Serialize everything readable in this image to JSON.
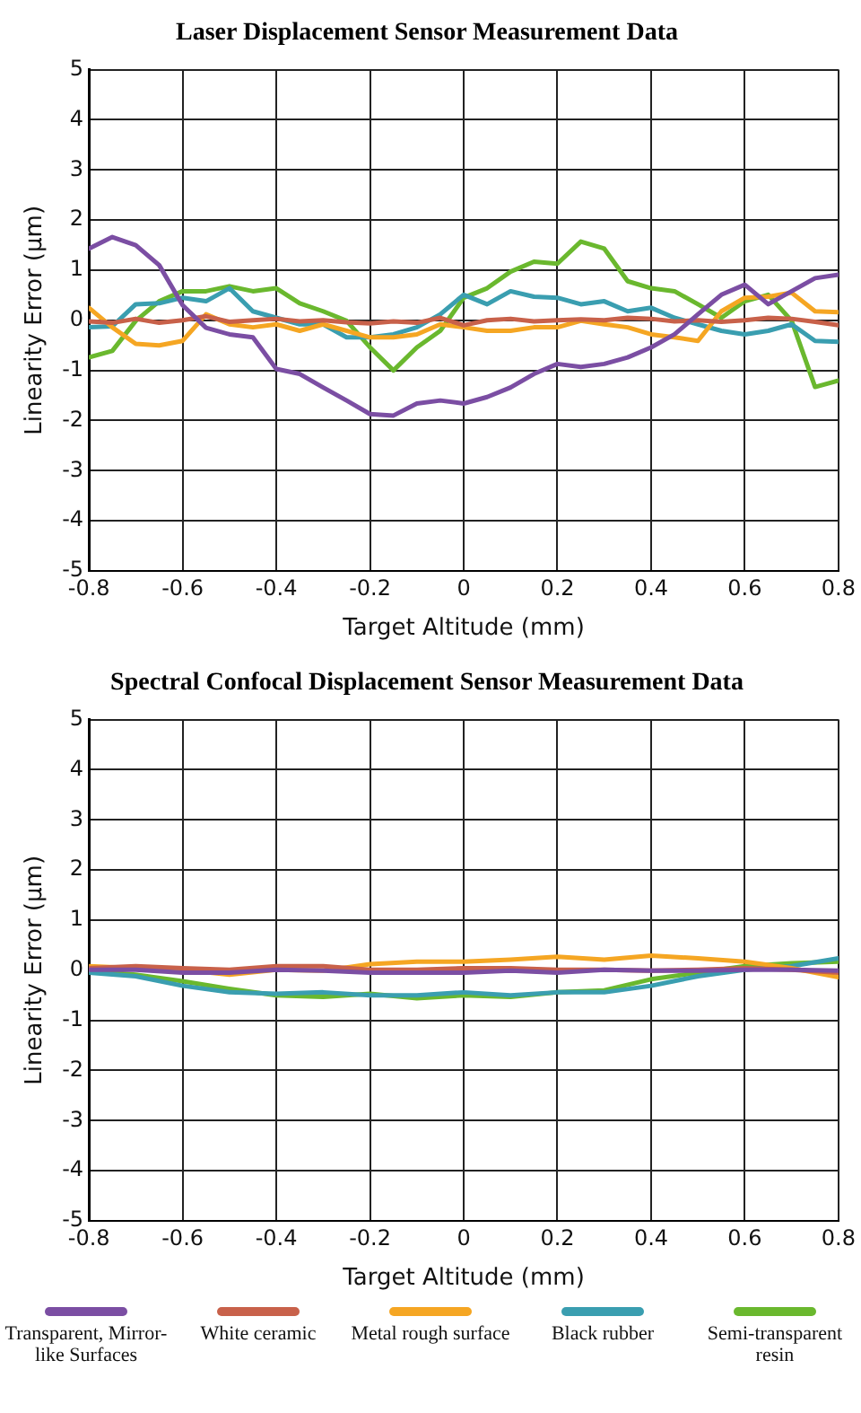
{
  "chart_data": [
    {
      "type": "line",
      "title": "Laser Displacement Sensor Measurement Data",
      "xlabel": "Target Altitude (mm)",
      "ylabel": "Linearity Error (μm)",
      "x": [
        -0.8,
        -0.75,
        -0.7,
        -0.65,
        -0.6,
        -0.55,
        -0.5,
        -0.45,
        -0.4,
        -0.35,
        -0.3,
        -0.25,
        -0.2,
        -0.15,
        -0.1,
        -0.05,
        0,
        0.05,
        0.1,
        0.15,
        0.2,
        0.25,
        0.3,
        0.35,
        0.4,
        0.45,
        0.5,
        0.55,
        0.6,
        0.65,
        0.7,
        0.75,
        0.8
      ],
      "xlim": [
        -0.8,
        0.8
      ],
      "xticks": [
        {
          "value": -0.8,
          "label": "-0.8"
        },
        {
          "value": -0.6,
          "label": "-0.6"
        },
        {
          "value": -0.4,
          "label": "-0.4"
        },
        {
          "value": -0.2,
          "label": "-0.2"
        },
        0,
        {
          "value": 0.2,
          "label": "0.2"
        },
        {
          "value": 0.4,
          "label": "0.4"
        },
        {
          "value": 0.6,
          "label": "0.6"
        },
        {
          "value": 0.8,
          "label": "0.8"
        }
      ],
      "ylim": [
        -5,
        5
      ],
      "yticks": [
        -5,
        -4,
        -3,
        -2,
        -1,
        0,
        1,
        2,
        3,
        4,
        5
      ],
      "grid": true,
      "legend": false,
      "line_style": "solid",
      "marker": "none",
      "series": [
        {
          "color": "#7b4ea3",
          "values": [
            1.43,
            1.66,
            1.5,
            1.1,
            0.3,
            -0.15,
            -0.28,
            -0.34,
            -0.97,
            -1.07,
            -1.34,
            -1.6,
            -1.87,
            -1.9,
            -1.66,
            -1.6,
            -1.66,
            -1.53,
            -1.34,
            -1.07,
            -0.87,
            -0.93,
            -0.87,
            -0.74,
            -0.54,
            -0.28,
            0.12,
            0.51,
            0.71,
            0.32,
            0.58,
            0.84,
            0.91
          ]
        },
        {
          "color": "#c8614a",
          "values": [
            -0.02,
            -0.05,
            0.03,
            -0.05,
            0,
            0.08,
            -0.03,
            0,
            0.03,
            -0.02,
            0,
            -0.04,
            -0.06,
            -0.02,
            -0.05,
            0.05,
            -0.1,
            0,
            0.03,
            -0.02,
            0,
            0.02,
            0,
            0.05,
            0.03,
            -0.02,
            0,
            -0.03,
            0,
            0.05,
            0.03,
            -0.03,
            -0.1
          ]
        },
        {
          "color": "#f5a623",
          "values": [
            0.25,
            -0.14,
            -0.47,
            -0.5,
            -0.41,
            0.12,
            -0.08,
            -0.14,
            -0.08,
            -0.21,
            -0.08,
            -0.21,
            -0.34,
            -0.34,
            -0.28,
            -0.08,
            -0.14,
            -0.21,
            -0.21,
            -0.14,
            -0.14,
            -0.01,
            -0.08,
            -0.14,
            -0.28,
            -0.34,
            -0.41,
            0.18,
            0.45,
            0.47,
            0.55,
            0.18,
            0.16
          ]
        },
        {
          "color": "#3a9eb0",
          "values": [
            -0.14,
            -0.12,
            0.32,
            0.34,
            0.45,
            0.38,
            0.64,
            0.18,
            0.05,
            -0.08,
            -0.08,
            -0.34,
            -0.34,
            -0.28,
            -0.14,
            0.12,
            0.51,
            0.32,
            0.58,
            0.47,
            0.45,
            0.32,
            0.38,
            0.18,
            0.25,
            0.05,
            -0.08,
            -0.21,
            -0.28,
            -0.21,
            -0.08,
            -0.41,
            -0.43
          ]
        },
        {
          "color": "#6ab82e",
          "values": [
            -0.74,
            -0.61,
            -0.01,
            0.38,
            0.58,
            0.58,
            0.68,
            0.58,
            0.64,
            0.34,
            0.18,
            -0.01,
            -0.54,
            -1.0,
            -0.54,
            -0.21,
            0.45,
            0.64,
            0.97,
            1.17,
            1.13,
            1.57,
            1.43,
            0.78,
            0.64,
            0.58,
            0.32,
            0.05,
            0.38,
            0.51,
            -0.01,
            -1.33,
            -1.2
          ]
        }
      ]
    },
    {
      "type": "line",
      "title": "Spectral Confocal Displacement Sensor Measurement Data",
      "xlabel": "Target Altitude (mm)",
      "ylabel": "Linearity Error (μm)",
      "x": [
        -0.8,
        -0.7,
        -0.6,
        -0.5,
        -0.4,
        -0.3,
        -0.2,
        -0.1,
        0,
        0.1,
        0.2,
        0.3,
        0.4,
        0.5,
        0.6,
        0.7,
        0.8
      ],
      "xlim": [
        -0.8,
        0.8
      ],
      "xticks": [
        {
          "value": -0.8,
          "label": "-0.8"
        },
        {
          "value": -0.6,
          "label": "-0.6"
        },
        {
          "value": -0.4,
          "label": "-0.4"
        },
        {
          "value": -0.2,
          "label": "-0.2"
        },
        0,
        {
          "value": 0.2,
          "label": "0.2"
        },
        {
          "value": 0.4,
          "label": "0.4"
        },
        {
          "value": 0.6,
          "label": "0.6"
        },
        {
          "value": 0.8,
          "label": "0.8"
        }
      ],
      "ylim": [
        -5,
        5
      ],
      "yticks": [
        -5,
        -4,
        -3,
        -2,
        -1,
        0,
        1,
        2,
        3,
        4,
        5
      ],
      "grid": true,
      "legend": "bottom",
      "line_style": "solid",
      "marker": "none",
      "series": [
        {
          "name": "Transparent, Mirror-like Surfaces",
          "color": "#7b4ea3",
          "values": [
            0.01,
            0.01,
            -0.05,
            -0.05,
            0.01,
            -0.01,
            -0.05,
            -0.05,
            -0.05,
            -0.01,
            -0.05,
            0.01,
            -0.01,
            -0.01,
            0.01,
            0.01,
            -0.01
          ]
        },
        {
          "name": "White ceramic",
          "color": "#c8614a",
          "values": [
            0.04,
            0.08,
            0.04,
            0.01,
            0.08,
            0.08,
            0.01,
            0.01,
            0.04,
            0.04,
            0.01,
            0.01,
            -0.01,
            0.01,
            0.04,
            0.01,
            -0.05
          ]
        },
        {
          "name": "Metal rough surface",
          "color": "#f5a623",
          "values": [
            0.08,
            0.04,
            0.01,
            -0.09,
            0.01,
            -0.01,
            0.12,
            0.17,
            0.17,
            0.21,
            0.27,
            0.21,
            0.29,
            0.24,
            0.17,
            0.04,
            -0.14
          ]
        },
        {
          "name": "Black rubber",
          "color": "#3a9eb0",
          "values": [
            -0.05,
            -0.12,
            -0.31,
            -0.44,
            -0.47,
            -0.44,
            -0.5,
            -0.5,
            -0.44,
            -0.5,
            -0.44,
            -0.44,
            -0.31,
            -0.12,
            0.01,
            0.08,
            0.24
          ]
        },
        {
          "name": "Semi-transparent resin",
          "color": "#6ab82e",
          "values": [
            -0.01,
            -0.09,
            -0.22,
            -0.37,
            -0.5,
            -0.53,
            -0.47,
            -0.56,
            -0.5,
            -0.53,
            -0.44,
            -0.4,
            -0.18,
            -0.05,
            0.08,
            0.14,
            0.17
          ]
        }
      ]
    }
  ]
}
